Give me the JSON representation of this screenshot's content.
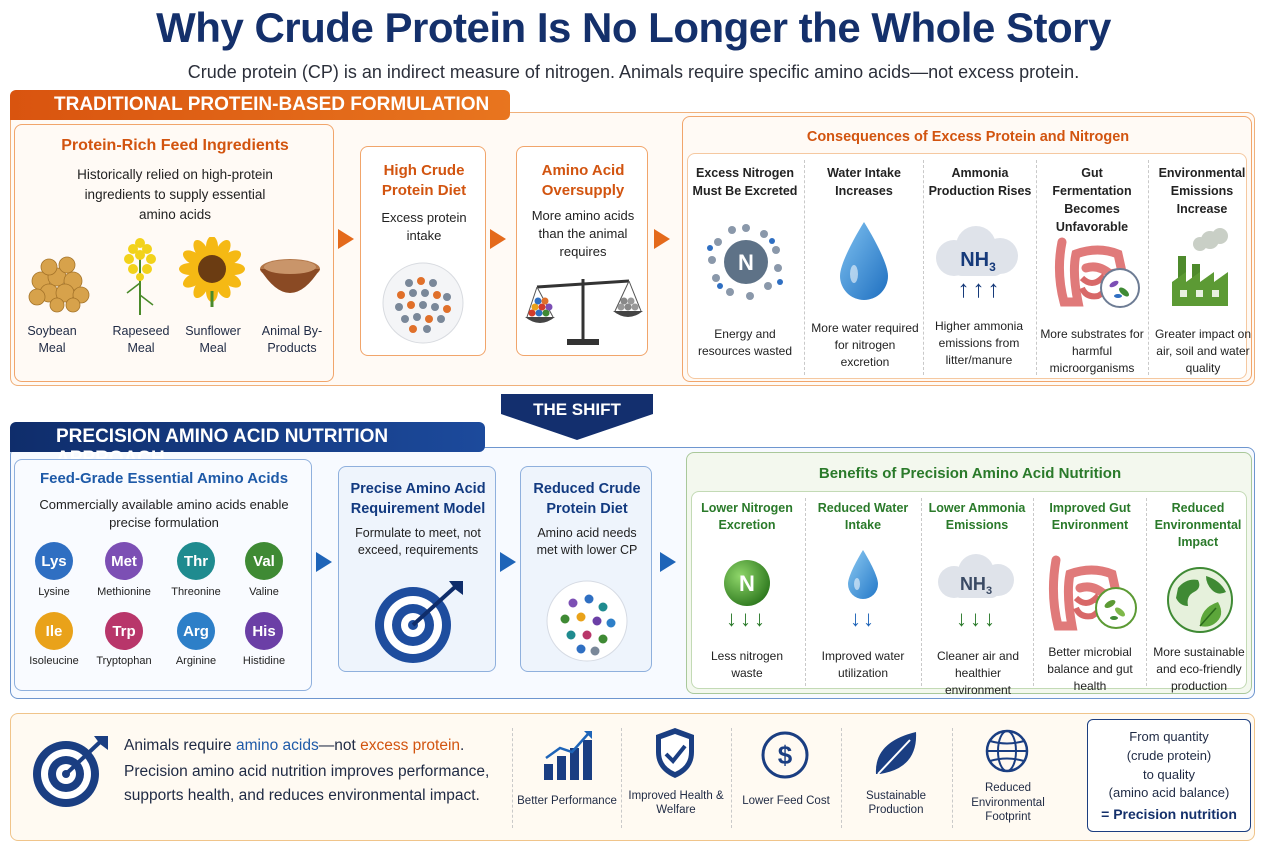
{
  "title": "Why Crude Protein Is No Longer the Whole Story",
  "subtitle": "Crude protein (CP) is an indirect measure of nitrogen. Animals require specific amino acids—not excess protein.",
  "traditional": {
    "tab": "TRADITIONAL PROTEIN-BASED FORMULATION",
    "ingredients": {
      "heading": "Protein-Rich Feed Ingredients",
      "desc": "Historically relied on high-protein ingredients to supply essential amino acids",
      "items": [
        {
          "label": "Soybean Meal",
          "icon": "soybean-icon"
        },
        {
          "label": "Rapeseed Meal",
          "icon": "rapeseed-icon"
        },
        {
          "label": "Sunflower Meal",
          "icon": "sunflower-icon"
        },
        {
          "label": "Animal By-Products",
          "icon": "animal-by-products-icon"
        }
      ]
    },
    "high_cp": {
      "heading": "High Crude Protein Diet",
      "desc": "Excess protein intake"
    },
    "oversupply": {
      "heading": "Amino Acid Oversupply",
      "desc": "More amino acids than the animal requires"
    },
    "consequences": {
      "heading": "Consequences of Excess Protein and Nitrogen",
      "items": [
        {
          "title": "Excess Nitrogen Must Be Excreted",
          "desc": "Energy and resources wasted",
          "icon": "nitrogen-atom-icon",
          "symbol": "N"
        },
        {
          "title": "Water Intake Increases",
          "desc": "More water required for nitrogen excretion",
          "icon": "water-drop-icon"
        },
        {
          "title": "Ammonia Production Rises",
          "desc": "Higher ammonia emissions from litter/manure",
          "icon": "ammonia-cloud-icon",
          "symbol": "NH",
          "sub": "3",
          "arrows": "↑↑↑"
        },
        {
          "title": "Gut Fermentation Becomes Unfavorable",
          "desc": "More substrates for harmful microorganisms",
          "icon": "gut-icon"
        },
        {
          "title": "Environmental Emissions Increase",
          "desc": "Greater impact on air, soil and water quality",
          "icon": "factory-icon"
        }
      ]
    }
  },
  "shift_label": "THE SHIFT",
  "precision": {
    "tab": "PRECISION AMINO ACID NUTRITION APPROACH",
    "amino": {
      "heading": "Feed-Grade Essential Amino Acids",
      "desc": "Commercially available amino acids enable precise formulation",
      "items": [
        {
          "abbr": "Lys",
          "name": "Lysine",
          "color": "#2f6fc2"
        },
        {
          "abbr": "Met",
          "name": "Methionine",
          "color": "#7c4fb4"
        },
        {
          "abbr": "Thr",
          "name": "Threonine",
          "color": "#1f8b8f"
        },
        {
          "abbr": "Val",
          "name": "Valine",
          "color": "#3f8a34"
        },
        {
          "abbr": "Ile",
          "name": "Isoleucine",
          "color": "#e9a21a"
        },
        {
          "abbr": "Trp",
          "name": "Tryptophan",
          "color": "#b8366a"
        },
        {
          "abbr": "Arg",
          "name": "Arginine",
          "color": "#2d7fc8"
        },
        {
          "abbr": "His",
          "name": "Histidine",
          "color": "#6b3fa6"
        }
      ]
    },
    "model": {
      "heading": "Precise Amino Acid Requirement Model",
      "desc": "Formulate to meet, not exceed, requirements"
    },
    "reduced": {
      "heading": "Reduced Crude Protein Diet",
      "desc": "Amino acid needs met with lower CP"
    },
    "benefits": {
      "heading": "Benefits of Precision Amino Acid Nutrition",
      "items": [
        {
          "title": "Lower Nitrogen Excretion",
          "desc": "Less nitrogen waste",
          "icon": "nitrogen-icon",
          "symbol": "N",
          "arrows": "↓↓↓"
        },
        {
          "title": "Reduced Water Intake",
          "desc": "Improved water utilization",
          "icon": "water-drop-icon",
          "arrows": "↓↓"
        },
        {
          "title": "Lower Ammonia Emissions",
          "desc": "Cleaner air and healthier environment",
          "icon": "ammonia-cloud-icon",
          "symbol": "NH",
          "sub": "3",
          "arrows": "↓↓↓"
        },
        {
          "title": "Improved Gut Environment",
          "desc": "Better microbial balance and gut health",
          "icon": "gut-icon"
        },
        {
          "title": "Reduced Environmental Impact",
          "desc": "More sustainable and eco-friendly production",
          "icon": "globe-leaf-icon"
        }
      ]
    }
  },
  "summary": {
    "line1_a": "Animals require ",
    "line1_b": "amino acids",
    "line1_c": "—not ",
    "line1_d": "excess protein",
    "line1_e": ".",
    "line2": "Precision amino acid nutrition improves performance,",
    "line3": "supports health, and reduces environmental impact.",
    "benefits": [
      {
        "label": "Better Performance",
        "icon": "bar-chart-icon"
      },
      {
        "label": "Improved Health & Welfare",
        "icon": "shield-check-icon"
      },
      {
        "label": "Lower Feed Cost",
        "icon": "dollar-icon"
      },
      {
        "label": "Sustainable Production",
        "icon": "leaf-icon"
      },
      {
        "label": "Reduced Environmental Footprint",
        "icon": "globe-icon"
      }
    ],
    "final": {
      "l1": "From quantity",
      "l2": "(crude protein)",
      "l3": "to quality",
      "l4": "(amino acid balance)",
      "l5": "= Precision nutrition"
    }
  }
}
